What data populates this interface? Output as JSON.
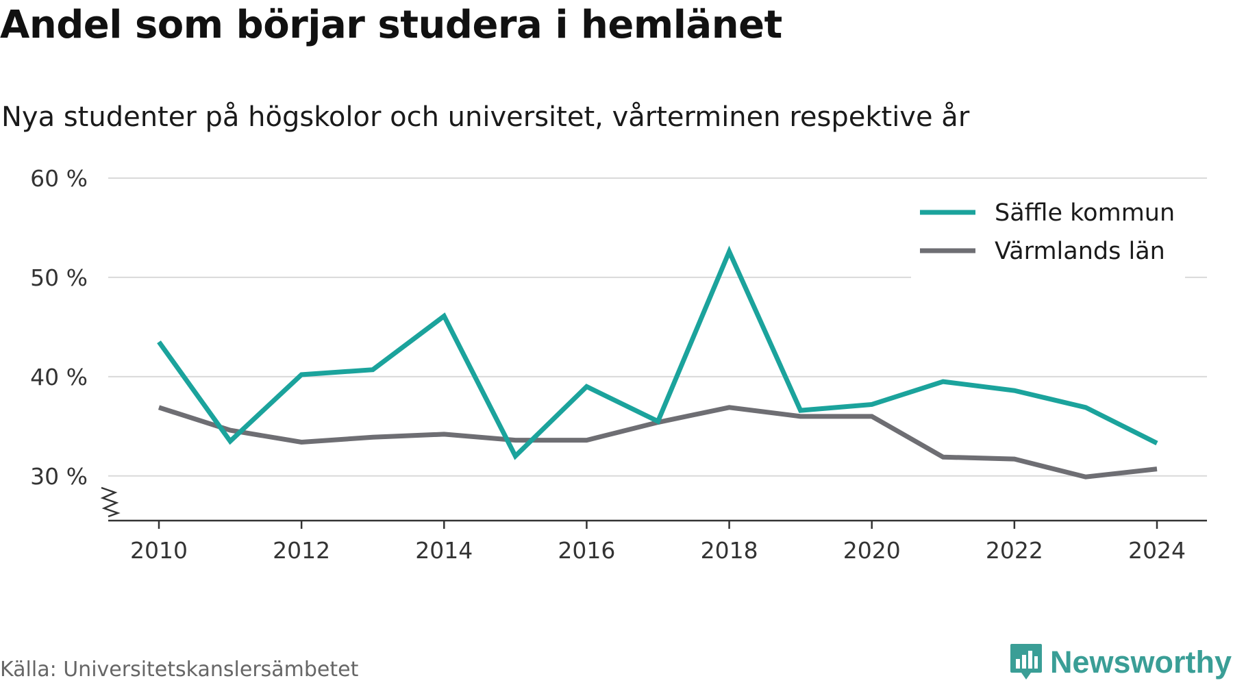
{
  "header": {
    "title": "Andel som börjar studera i hemlänet",
    "subtitle": "Nya studenter på högskolor och universitet, vårterminen respektive år"
  },
  "footer": {
    "source": "Källa: Universitetskanslersämbetet",
    "brand": "Newsworthy",
    "brand_icon": "bar-chart-badge-icon"
  },
  "colors": {
    "saffle": "#1ba39c",
    "varmland": "#6e6e73",
    "grid": "#d9d9d9",
    "axis": "#333333",
    "brand": "#3a9e96"
  },
  "chart_data": {
    "type": "line",
    "x": [
      2010,
      2011,
      2012,
      2013,
      2014,
      2015,
      2016,
      2017,
      2018,
      2019,
      2020,
      2021,
      2022,
      2023,
      2024
    ],
    "x_ticks": [
      2010,
      2012,
      2014,
      2016,
      2018,
      2020,
      2022,
      2024
    ],
    "x_tick_labels": [
      "2010",
      "2012",
      "2014",
      "2016",
      "2018",
      "2020",
      "2022",
      "2024"
    ],
    "y_ticks": [
      30,
      40,
      50,
      60
    ],
    "y_tick_labels": [
      "30 %",
      "40 %",
      "50 %",
      "60 %"
    ],
    "ylim": [
      25.5,
      60
    ],
    "y_axis_break": true,
    "grid": true,
    "legend_position": "top-right",
    "series": [
      {
        "name": "Säffle kommun",
        "color": "#1ba39c",
        "values": [
          43.5,
          33.5,
          40.2,
          40.7,
          46.1,
          32.0,
          39.0,
          35.5,
          52.6,
          36.6,
          37.2,
          39.5,
          38.6,
          36.9,
          33.3
        ]
      },
      {
        "name": "Värmlands län",
        "color": "#6e6e73",
        "values": [
          36.9,
          34.6,
          33.4,
          33.9,
          34.2,
          33.6,
          33.6,
          35.4,
          36.9,
          36.0,
          36.0,
          31.9,
          31.7,
          29.9,
          30.7
        ]
      }
    ]
  }
}
